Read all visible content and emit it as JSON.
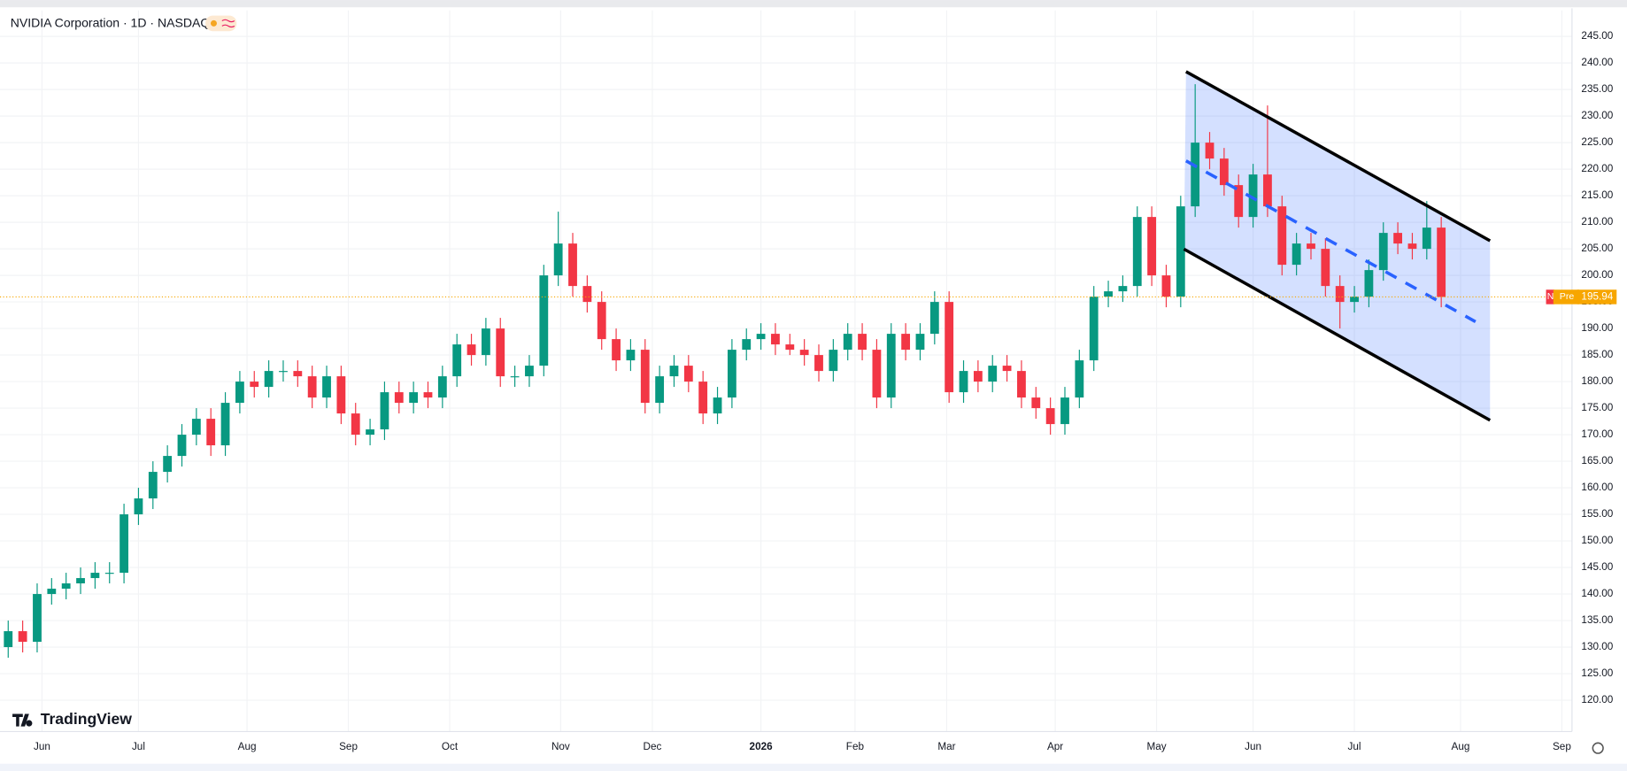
{
  "chart_data": {
    "type": "candlestick",
    "title": "NVIDIA Corporation · 1D · NASDAQ",
    "watermark": "TradingView",
    "price_tag": "Pre",
    "badge": "N",
    "up_color": "#089981",
    "down_color": "#f23645",
    "grid": true,
    "x": [
      0,
      3,
      6,
      9,
      12,
      15,
      18,
      21,
      24,
      27,
      30,
      33,
      36,
      39,
      42,
      45,
      48,
      51,
      54,
      57,
      60,
      63,
      66,
      69,
      72,
      75,
      78,
      81,
      84,
      87,
      90,
      93,
      96,
      99,
      102,
      105,
      108,
      111,
      114,
      117,
      120,
      123,
      126,
      129,
      132,
      135,
      138,
      141,
      144,
      147,
      150,
      153,
      156,
      159,
      162,
      165,
      168,
      171,
      174,
      177,
      180,
      183,
      186,
      189,
      192,
      195,
      198,
      201,
      204,
      207,
      210,
      213,
      216,
      219,
      222,
      225,
      228,
      231,
      234,
      237,
      240,
      243,
      246,
      249,
      252,
      255,
      258,
      261,
      264,
      267,
      270,
      273,
      276,
      279,
      282,
      285,
      288,
      291,
      294,
      297
    ],
    "open": [
      130,
      133,
      131,
      140,
      141,
      142,
      143,
      144,
      144,
      155,
      158,
      163,
      166,
      170,
      173,
      168,
      176,
      180,
      179,
      182,
      182,
      181,
      177,
      181,
      174,
      170,
      171,
      178,
      176,
      178,
      177,
      181,
      187,
      185,
      190,
      181,
      181,
      183,
      200,
      206,
      198,
      195,
      188,
      184,
      186,
      176,
      181,
      183,
      180,
      174,
      177,
      186,
      188,
      189,
      187,
      186,
      185,
      182,
      186,
      189,
      186,
      177,
      189,
      186,
      189,
      195,
      178,
      182,
      180,
      183,
      182,
      177,
      175,
      172,
      177,
      184,
      196,
      197,
      198,
      211,
      200,
      196,
      213,
      225,
      222,
      217,
      211,
      219,
      213,
      202,
      206,
      205,
      198,
      195,
      196,
      201,
      208,
      206,
      205,
      209
    ],
    "high": [
      135,
      135,
      142,
      143,
      144,
      145,
      146,
      146,
      157,
      160,
      165,
      168,
      172,
      175,
      175,
      178,
      182,
      182,
      184,
      184,
      184,
      183,
      183,
      183,
      176,
      173,
      180,
      180,
      180,
      180,
      183,
      189,
      189,
      192,
      192,
      183,
      185,
      202,
      212,
      208,
      200,
      197,
      190,
      188,
      188,
      183,
      185,
      185,
      182,
      179,
      188,
      190,
      191,
      191,
      189,
      188,
      187,
      188,
      191,
      191,
      188,
      191,
      191,
      191,
      197,
      197,
      184,
      184,
      185,
      185,
      184,
      179,
      177,
      179,
      186,
      198,
      199,
      200,
      213,
      213,
      202,
      215,
      236,
      227,
      224,
      219,
      221,
      232,
      215,
      208,
      208,
      207,
      200,
      198,
      203,
      210,
      210,
      208,
      214,
      211
    ],
    "low": [
      128,
      129,
      129,
      138,
      139,
      140,
      141,
      142,
      142,
      153,
      156,
      161,
      164,
      168,
      166,
      166,
      174,
      177,
      177,
      180,
      179,
      175,
      175,
      172,
      168,
      168,
      169,
      174,
      174,
      175,
      175,
      179,
      183,
      183,
      179,
      179,
      179,
      181,
      198,
      196,
      193,
      186,
      182,
      182,
      174,
      174,
      179,
      178,
      172,
      172,
      175,
      184,
      186,
      185,
      185,
      183,
      180,
      180,
      184,
      184,
      175,
      175,
      184,
      184,
      187,
      176,
      176,
      178,
      178,
      180,
      175,
      173,
      170,
      170,
      175,
      182,
      194,
      195,
      196,
      198,
      194,
      194,
      211,
      220,
      215,
      209,
      209,
      211,
      200,
      200,
      203,
      196,
      190,
      193,
      194,
      199,
      204,
      203,
      203,
      194
    ],
    "close": [
      133,
      131,
      140,
      141,
      142,
      143,
      144,
      144,
      155,
      158,
      163,
      166,
      170,
      173,
      168,
      176,
      180,
      179,
      182,
      182,
      181,
      177,
      181,
      174,
      170,
      171,
      178,
      176,
      178,
      177,
      181,
      187,
      185,
      190,
      181,
      181,
      183,
      200,
      206,
      198,
      195,
      188,
      184,
      186,
      176,
      181,
      183,
      180,
      174,
      177,
      186,
      188,
      189,
      187,
      186,
      185,
      182,
      186,
      189,
      186,
      177,
      189,
      186,
      189,
      195,
      178,
      182,
      180,
      183,
      182,
      177,
      175,
      172,
      177,
      184,
      196,
      197,
      198,
      211,
      200,
      196,
      213,
      225,
      222,
      217,
      211,
      219,
      213,
      202,
      206,
      205,
      198,
      195,
      196,
      201,
      208,
      206,
      205,
      209,
      195.94
    ],
    "xlim": [
      -1.7,
      324.1
    ],
    "ylim": [
      114.1,
      249.9
    ],
    "xticks": [
      {
        "value": 7,
        "label": "Jun"
      },
      {
        "value": 27,
        "label": "Jul"
      },
      {
        "value": 49.5,
        "label": "Aug"
      },
      {
        "value": 70.5,
        "label": "Sep"
      },
      {
        "value": 91.5,
        "label": "Oct"
      },
      {
        "value": 114.5,
        "label": "Nov"
      },
      {
        "value": 133.5,
        "label": "Dec"
      },
      {
        "value": 156,
        "label": "2026"
      },
      {
        "value": 175.5,
        "label": "Feb"
      },
      {
        "value": 194.5,
        "label": "Mar"
      },
      {
        "value": 217,
        "label": "Apr"
      },
      {
        "value": 238,
        "label": "May"
      },
      {
        "value": 258,
        "label": "Jun"
      },
      {
        "value": 279,
        "label": "Jul"
      },
      {
        "value": 301,
        "label": "Aug"
      },
      {
        "value": 322,
        "label": "Sep"
      }
    ],
    "yticks": [
      {
        "value": 120,
        "label": "120.00"
      },
      {
        "value": 125,
        "label": "125.00"
      },
      {
        "value": 130,
        "label": "130.00"
      },
      {
        "value": 135,
        "label": "135.00"
      },
      {
        "value": 140,
        "label": "140.00"
      },
      {
        "value": 145,
        "label": "145.00"
      },
      {
        "value": 150,
        "label": "150.00"
      },
      {
        "value": 155,
        "label": "155.00"
      },
      {
        "value": 160,
        "label": "160.00"
      },
      {
        "value": 165,
        "label": "165.00"
      },
      {
        "value": 170,
        "label": "170.00"
      },
      {
        "value": 175,
        "label": "175.00"
      },
      {
        "value": 180,
        "label": "180.00"
      },
      {
        "value": 185,
        "label": "185.00"
      },
      {
        "value": 190,
        "label": "190.00"
      },
      {
        "value": 195,
        "label": "195.00"
      },
      {
        "value": 200,
        "label": "200.00"
      },
      {
        "value": 205,
        "label": "205.00"
      },
      {
        "value": 210,
        "label": "210.00"
      },
      {
        "value": 215,
        "label": "215.00"
      },
      {
        "value": 220,
        "label": "220.00"
      },
      {
        "value": 225,
        "label": "225.00"
      },
      {
        "value": 230,
        "label": "230.00"
      },
      {
        "value": 235,
        "label": "235.00"
      },
      {
        "value": 240,
        "label": "240.00"
      },
      {
        "value": 245,
        "label": "245.00"
      }
    ]
  }
}
